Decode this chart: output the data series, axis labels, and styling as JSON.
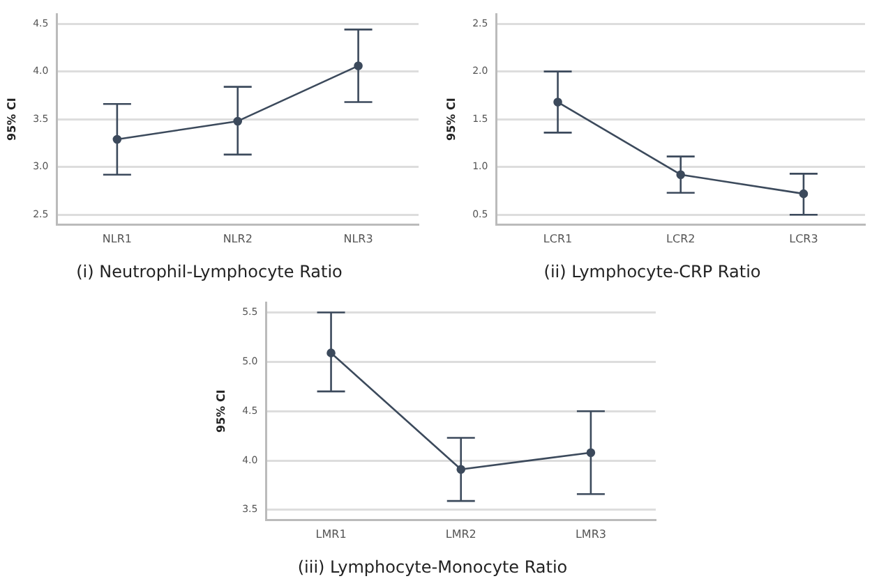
{
  "chart_data": [
    {
      "type": "line",
      "title": "(i) Neutrophil-Lymphocyte Ratio",
      "ylabel": "95% CI",
      "categories": [
        "NLR1",
        "NLR2",
        "NLR3"
      ],
      "series": [
        {
          "color": "#3c4a5c",
          "values": [
            3.29,
            3.48,
            4.06
          ],
          "errors": [
            [
              2.92,
              3.66
            ],
            [
              3.13,
              3.84
            ],
            [
              3.68,
              4.44
            ]
          ]
        }
      ],
      "ylim": [
        2.4,
        4.6
      ],
      "yticks": [
        2.5,
        {
          "value": 3,
          "label": "3.0"
        },
        3.5,
        {
          "value": 4,
          "label": "4.0"
        },
        4.5
      ],
      "grid": "y",
      "marker": "circle",
      "line_style": "solid"
    },
    {
      "type": "line",
      "title": "(ii) Lymphocyte-CRP Ratio",
      "ylabel": "95% CI",
      "categories": [
        "LCR1",
        "LCR2",
        "LCR3"
      ],
      "series": [
        {
          "color": "#3c4a5c",
          "values": [
            1.68,
            0.92,
            0.72
          ],
          "errors": [
            [
              1.36,
              2.0
            ],
            [
              0.73,
              1.11
            ],
            [
              0.5,
              0.93
            ]
          ]
        }
      ],
      "ylim": [
        0.4,
        2.6
      ],
      "yticks": [
        0.5,
        {
          "value": 1,
          "label": "1.0"
        },
        1.5,
        {
          "value": 2,
          "label": "2.0"
        },
        2.5
      ],
      "grid": "y",
      "marker": "circle",
      "line_style": "solid"
    },
    {
      "type": "line",
      "title": "(iii) Lymphocyte-Monocyte Ratio",
      "ylabel": "95% CI",
      "categories": [
        "LMR1",
        "LMR2",
        "LMR3"
      ],
      "series": [
        {
          "color": "#3c4a5c",
          "values": [
            5.09,
            3.91,
            4.08
          ],
          "errors": [
            [
              4.7,
              5.5
            ],
            [
              3.59,
              4.23
            ],
            [
              3.66,
              4.5
            ]
          ]
        }
      ],
      "ylim": [
        3.4,
        5.6
      ],
      "yticks": [
        3.5,
        {
          "value": 4,
          "label": "4.0"
        },
        4.5,
        {
          "value": 5,
          "label": "5.0"
        },
        5.5
      ],
      "grid": "y",
      "marker": "circle",
      "line_style": "solid"
    }
  ]
}
